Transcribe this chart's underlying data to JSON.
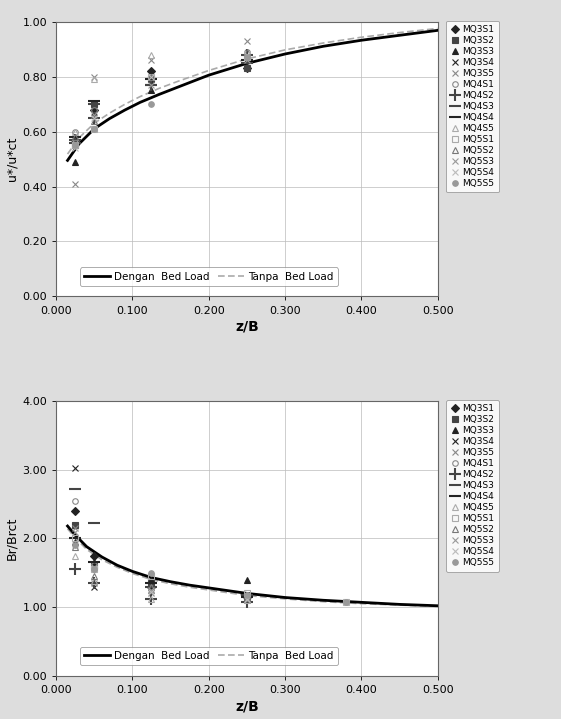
{
  "plot1": {
    "ylabel": "u*/u*ct",
    "xlabel": "z/B",
    "xlim": [
      0.0,
      0.5
    ],
    "ylim": [
      0.0,
      1.0
    ],
    "xticks": [
      0.0,
      0.1,
      0.2,
      0.3,
      0.4,
      0.5
    ],
    "yticks": [
      0.0,
      0.2,
      0.4,
      0.6,
      0.8,
      1.0
    ],
    "curve_dengan_x": [
      0.015,
      0.03,
      0.05,
      0.07,
      0.09,
      0.11,
      0.135,
      0.16,
      0.2,
      0.25,
      0.3,
      0.35,
      0.4,
      0.45,
      0.5
    ],
    "curve_dengan_y": [
      0.495,
      0.555,
      0.61,
      0.647,
      0.678,
      0.706,
      0.735,
      0.762,
      0.805,
      0.848,
      0.882,
      0.91,
      0.932,
      0.95,
      0.968
    ],
    "curve_tanpa_x": [
      0.015,
      0.03,
      0.05,
      0.07,
      0.09,
      0.11,
      0.135,
      0.16,
      0.2,
      0.25,
      0.3,
      0.35,
      0.4,
      0.45,
      0.5
    ],
    "curve_tanpa_y": [
      0.518,
      0.577,
      0.63,
      0.667,
      0.699,
      0.727,
      0.757,
      0.783,
      0.822,
      0.864,
      0.897,
      0.922,
      0.943,
      0.96,
      0.975
    ],
    "scatter": [
      {
        "label": "MQ3S1",
        "x": [
          0.025,
          0.05,
          0.125,
          0.25
        ],
        "y": [
          0.57,
          0.68,
          0.82,
          0.83
        ],
        "marker": "D",
        "color": "#222222",
        "ms": 4,
        "mfc": "#222222"
      },
      {
        "label": "MQ3S2",
        "x": [
          0.025,
          0.05,
          0.125,
          0.25
        ],
        "y": [
          0.55,
          0.7,
          0.79,
          0.83
        ],
        "marker": "s",
        "color": "#444444",
        "ms": 4,
        "mfc": "#444444"
      },
      {
        "label": "MQ3S3",
        "x": [
          0.025,
          0.05,
          0.125,
          0.25
        ],
        "y": [
          0.49,
          0.66,
          0.75,
          0.86
        ],
        "marker": "^",
        "color": "#222222",
        "ms": 5,
        "mfc": "#222222"
      },
      {
        "label": "MQ3S4",
        "x": [
          0.025,
          0.05,
          0.125,
          0.25
        ],
        "y": [
          0.55,
          0.67,
          0.78,
          0.87
        ],
        "marker": "x",
        "color": "#222222",
        "ms": 5,
        "mfc": "none"
      },
      {
        "label": "MQ3S5",
        "x": [
          0.025,
          0.05,
          0.125,
          0.25
        ],
        "y": [
          0.41,
          0.8,
          0.86,
          0.93
        ],
        "marker": "x",
        "color": "#888888",
        "ms": 5,
        "mfc": "none"
      },
      {
        "label": "MQ4S1",
        "x": [
          0.025,
          0.05,
          0.125,
          0.25
        ],
        "y": [
          0.6,
          0.68,
          0.8,
          0.89
        ],
        "marker": "o",
        "color": "#888888",
        "ms": 4,
        "mfc": "none"
      },
      {
        "label": "MQ4S2",
        "x": [
          0.025,
          0.05,
          0.125,
          0.25
        ],
        "y": [
          0.57,
          0.65,
          0.77,
          0.88
        ],
        "marker": "+",
        "color": "#444444",
        "ms": 6,
        "mfc": "none"
      },
      {
        "label": "MQ4S3",
        "x": [
          0.025,
          0.05,
          0.125,
          0.25
        ],
        "y": [
          0.56,
          0.7,
          0.77,
          0.85
        ],
        "marker": "_",
        "color": "#444444",
        "ms": 7,
        "mfc": "none"
      },
      {
        "label": "MQ4S4",
        "x": [
          0.025,
          0.05,
          0.125,
          0.25
        ],
        "y": [
          0.58,
          0.71,
          0.79,
          0.86
        ],
        "marker": "_",
        "color": "#222222",
        "ms": 7,
        "mfc": "none"
      },
      {
        "label": "MQ4S5",
        "x": [
          0.025,
          0.05,
          0.125,
          0.25
        ],
        "y": [
          0.6,
          0.79,
          0.88,
          0.87
        ],
        "marker": "^",
        "color": "#aaaaaa",
        "ms": 5,
        "mfc": "none"
      },
      {
        "label": "MQ5S1",
        "x": [
          0.025,
          0.05,
          0.125,
          0.25
        ],
        "y": [
          0.55,
          0.61,
          0.8,
          0.87
        ],
        "marker": "s",
        "color": "#aaaaaa",
        "ms": 4,
        "mfc": "none"
      },
      {
        "label": "MQ5S2",
        "x": [
          0.025,
          0.05,
          0.125,
          0.25
        ],
        "y": [
          0.58,
          0.64,
          0.8,
          0.89
        ],
        "marker": "^",
        "color": "#777777",
        "ms": 5,
        "mfc": "none"
      },
      {
        "label": "MQ5S3",
        "x": [
          0.025,
          0.05,
          0.125,
          0.25
        ],
        "y": [
          0.56,
          0.66,
          0.77,
          0.86
        ],
        "marker": "x",
        "color": "#999999",
        "ms": 5,
        "mfc": "none"
      },
      {
        "label": "MQ5S4",
        "x": [
          0.025,
          0.05,
          0.125,
          0.25
        ],
        "y": [
          0.54,
          0.65,
          0.8,
          0.88
        ],
        "marker": "x",
        "color": "#bbbbbb",
        "ms": 5,
        "mfc": "none"
      },
      {
        "label": "MQ5S5",
        "x": [
          0.025,
          0.05,
          0.125,
          0.25
        ],
        "y": [
          0.55,
          0.61,
          0.7,
          0.87
        ],
        "marker": "o",
        "color": "#999999",
        "ms": 4,
        "mfc": "#999999"
      }
    ]
  },
  "plot2": {
    "ylabel": "Br/Brct",
    "xlabel": "z/B",
    "xlim": [
      0.0,
      0.5
    ],
    "ylim": [
      0.0,
      4.0
    ],
    "xticks": [
      0.0,
      0.1,
      0.2,
      0.3,
      0.4,
      0.5
    ],
    "yticks": [
      0.0,
      1.0,
      2.0,
      3.0,
      4.0
    ],
    "curve_dengan_x": [
      0.015,
      0.025,
      0.04,
      0.06,
      0.08,
      0.1,
      0.125,
      0.15,
      0.175,
      0.2,
      0.25,
      0.3,
      0.35,
      0.4,
      0.45,
      0.5
    ],
    "curve_dengan_y": [
      2.18,
      2.05,
      1.88,
      1.73,
      1.61,
      1.52,
      1.43,
      1.37,
      1.32,
      1.28,
      1.2,
      1.14,
      1.1,
      1.07,
      1.04,
      1.02
    ],
    "curve_tanpa_x": [
      0.015,
      0.025,
      0.04,
      0.06,
      0.08,
      0.1,
      0.125,
      0.15,
      0.175,
      0.2,
      0.25,
      0.3,
      0.35,
      0.4,
      0.45,
      0.5
    ],
    "curve_tanpa_y": [
      2.14,
      2.01,
      1.84,
      1.69,
      1.58,
      1.49,
      1.4,
      1.34,
      1.29,
      1.25,
      1.17,
      1.12,
      1.08,
      1.05,
      1.03,
      1.01
    ],
    "scatter": [
      {
        "label": "MQ3S1",
        "x": [
          0.025,
          0.05,
          0.125,
          0.25
        ],
        "y": [
          2.4,
          1.75,
          1.3,
          1.15
        ],
        "marker": "D",
        "color": "#222222",
        "ms": 4,
        "mfc": "#222222"
      },
      {
        "label": "MQ3S2",
        "x": [
          0.025,
          0.05,
          0.125,
          0.25
        ],
        "y": [
          2.2,
          1.6,
          1.35,
          1.15
        ],
        "marker": "s",
        "color": "#444444",
        "ms": 4,
        "mfc": "#444444"
      },
      {
        "label": "MQ3S3",
        "x": [
          0.025,
          0.05,
          0.125,
          0.25
        ],
        "y": [
          1.95,
          1.65,
          1.4,
          1.4
        ],
        "marker": "^",
        "color": "#222222",
        "ms": 5,
        "mfc": "#222222"
      },
      {
        "label": "MQ3S4",
        "x": [
          0.025,
          0.05,
          0.125
        ],
        "y": [
          3.02,
          1.3,
          1.25
        ],
        "marker": "x",
        "color": "#222222",
        "ms": 5,
        "mfc": "none"
      },
      {
        "label": "MQ3S5",
        "x": [
          0.025,
          0.05,
          0.125,
          0.25
        ],
        "y": [
          2.15,
          1.35,
          1.2,
          1.1
        ],
        "marker": "x",
        "color": "#888888",
        "ms": 5,
        "mfc": "none"
      },
      {
        "label": "MQ4S1",
        "x": [
          0.025,
          0.05,
          0.125,
          0.25
        ],
        "y": [
          2.55,
          1.62,
          1.28,
          1.18
        ],
        "marker": "o",
        "color": "#888888",
        "ms": 4,
        "mfc": "none"
      },
      {
        "label": "MQ4S2",
        "x": [
          0.025,
          0.05,
          0.125,
          0.25
        ],
        "y": [
          1.55,
          1.35,
          1.12,
          1.08
        ],
        "marker": "+",
        "color": "#444444",
        "ms": 6,
        "mfc": "none"
      },
      {
        "label": "MQ4S3",
        "x": [
          0.025,
          0.05,
          0.125,
          0.25
        ],
        "y": [
          2.72,
          2.22,
          1.3,
          1.18
        ],
        "marker": "_",
        "color": "#444444",
        "ms": 7,
        "mfc": "none"
      },
      {
        "label": "MQ4S4",
        "x": [
          0.025,
          0.05,
          0.125,
          0.25
        ],
        "y": [
          2.0,
          1.65,
          1.35,
          1.15
        ],
        "marker": "_",
        "color": "#222222",
        "ms": 7,
        "mfc": "none"
      },
      {
        "label": "MQ4S5",
        "x": [
          0.025,
          0.05,
          0.125,
          0.25
        ],
        "y": [
          1.75,
          1.38,
          1.12,
          1.1
        ],
        "marker": "^",
        "color": "#aaaaaa",
        "ms": 5,
        "mfc": "none"
      },
      {
        "label": "MQ5S1",
        "x": [
          0.025,
          0.05,
          0.125,
          0.25,
          0.38
        ],
        "y": [
          2.0,
          1.55,
          1.45,
          1.2,
          1.08
        ],
        "marker": "s",
        "color": "#aaaaaa",
        "ms": 4,
        "mfc": "none"
      },
      {
        "label": "MQ5S2",
        "x": [
          0.025,
          0.05,
          0.125,
          0.25
        ],
        "y": [
          1.88,
          1.45,
          1.3,
          1.15
        ],
        "marker": "^",
        "color": "#777777",
        "ms": 5,
        "mfc": "none"
      },
      {
        "label": "MQ5S3",
        "x": [
          0.025,
          0.05,
          0.125,
          0.25
        ],
        "y": [
          2.1,
          1.58,
          1.25,
          1.1
        ],
        "marker": "x",
        "color": "#999999",
        "ms": 5,
        "mfc": "none"
      },
      {
        "label": "MQ5S4",
        "x": [
          0.025,
          0.05,
          0.125,
          0.25,
          0.38
        ],
        "y": [
          1.9,
          1.55,
          1.22,
          1.12,
          1.08
        ],
        "marker": "x",
        "color": "#bbbbbb",
        "ms": 5,
        "mfc": "none"
      },
      {
        "label": "MQ5S5",
        "x": [
          0.025,
          0.05,
          0.125,
          0.25,
          0.38
        ],
        "y": [
          1.9,
          1.55,
          1.5,
          1.18,
          1.08
        ],
        "marker": "o",
        "color": "#999999",
        "ms": 4,
        "mfc": "#999999"
      }
    ]
  },
  "bg_color": "#dddddd",
  "legend_curve_dengan": "Dengan  Bed Load",
  "legend_curve_tanpa": "Tanpa  Bed Load"
}
